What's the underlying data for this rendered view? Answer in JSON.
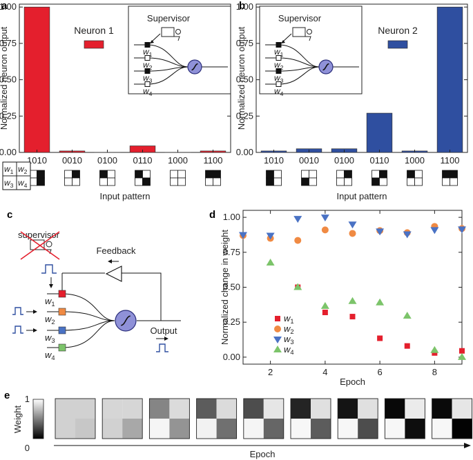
{
  "colors": {
    "red": "#e41f2d",
    "blue": "#2f4fa0",
    "orange": "#f08a43",
    "green": "#7cc46a",
    "tri_blue": "#4a72c4",
    "neuron": "#8f91d8",
    "axis": "#222222"
  },
  "panels": {
    "a": {
      "label": "a"
    },
    "b": {
      "label": "b"
    },
    "c": {
      "label": "c"
    },
    "d": {
      "label": "d"
    },
    "e": {
      "label": "e"
    }
  },
  "inset": {
    "supervisor": "Supervisor",
    "w_letter": "w",
    "w_subs": [
      "1",
      "2",
      "3",
      "4"
    ]
  },
  "key_grid": {
    "w": "w",
    "subs": [
      "1",
      "2",
      "3",
      "4"
    ]
  },
  "panel_c": {
    "supervisor": "supervisor",
    "feedback": "Feedback",
    "output": "Output",
    "w_letter": "w",
    "w_subs": [
      "1",
      "2",
      "3",
      "4"
    ]
  },
  "chart_data": [
    {
      "id": "a",
      "type": "bar",
      "annotation": "Neuron 1",
      "ylabel": "Normalized neuron output",
      "xlabel": "Input pattern",
      "categories": [
        "1010",
        "0010",
        "0100",
        "0110",
        "1000",
        "1100"
      ],
      "values": [
        1.0,
        0.01,
        0.0,
        0.045,
        0.0,
        0.01
      ],
      "ylim": [
        0,
        1.02
      ],
      "yticks": [
        "0.00",
        "0.25",
        "0.50",
        "0.75",
        "1.00"
      ],
      "color": "#e41f2d",
      "pattern_icons": [
        [
          0,
          1,
          0,
          1
        ],
        [
          0,
          1,
          0,
          0
        ],
        [
          1,
          0,
          0,
          0
        ],
        [
          1,
          0,
          0,
          1
        ],
        [
          0,
          0,
          0,
          0
        ],
        [
          1,
          1,
          0,
          0
        ]
      ]
    },
    {
      "id": "b",
      "type": "bar",
      "annotation": "Neuron 2",
      "ylabel": "Normalized neuron output",
      "xlabel": "Input pattern",
      "categories": [
        "1010",
        "0010",
        "0100",
        "0110",
        "1000",
        "1100"
      ],
      "values": [
        0.01,
        0.025,
        0.025,
        0.27,
        0.01,
        1.0
      ],
      "ylim": [
        0,
        1.02
      ],
      "yticks": [
        "0.00",
        "0.25",
        "0.50",
        "0.75",
        "1.00"
      ],
      "color": "#2f4fa0",
      "pattern_icons": [
        [
          1,
          0,
          1,
          0
        ],
        [
          0,
          0,
          1,
          0
        ],
        [
          0,
          1,
          0,
          0
        ],
        [
          0,
          1,
          1,
          0
        ],
        [
          1,
          0,
          0,
          0
        ],
        [
          1,
          1,
          0,
          0
        ]
      ]
    },
    {
      "id": "d",
      "type": "scatter",
      "ylabel": "Normalized change in weight",
      "xlabel": "Epoch",
      "xlim": [
        1,
        9
      ],
      "ylim": [
        -0.05,
        1.05
      ],
      "xticks": [
        2,
        4,
        6,
        8
      ],
      "yticks": [
        "0.00",
        "0.25",
        "0.50",
        "0.75",
        "1.00"
      ],
      "legend_position": "bottom-left",
      "series": [
        {
          "name": "w1",
          "sub": "1",
          "marker": "square",
          "color": "#e41f2d",
          "x": [
            3,
            4,
            5,
            6,
            7,
            8,
            9
          ],
          "y": [
            0.5,
            0.32,
            0.29,
            0.135,
            0.08,
            0.03,
            0.045
          ]
        },
        {
          "name": "w2",
          "sub": "2",
          "marker": "circle",
          "color": "#f08a43",
          "x": [
            1,
            2,
            3,
            4,
            5,
            6,
            7,
            8,
            9
          ],
          "y": [
            0.87,
            0.85,
            0.835,
            0.91,
            0.885,
            0.905,
            0.89,
            0.935,
            0.92
          ]
        },
        {
          "name": "w3",
          "sub": "3",
          "marker": "triangle-down",
          "color": "#4a72c4",
          "x": [
            1,
            2,
            3,
            4,
            5,
            6,
            7,
            8,
            9
          ],
          "y": [
            0.875,
            0.87,
            0.99,
            1.0,
            0.95,
            0.9,
            0.88,
            0.91,
            0.915
          ]
        },
        {
          "name": "w4",
          "sub": "4",
          "marker": "triangle-up",
          "color": "#7cc46a",
          "x": [
            2,
            3,
            4,
            5,
            6,
            7,
            8,
            9
          ],
          "y": [
            0.675,
            0.5,
            0.365,
            0.4,
            0.39,
            0.295,
            0.05,
            0.0
          ]
        }
      ]
    },
    {
      "id": "e",
      "type": "heatmap",
      "ylabel": "Weight",
      "xlabel": "Epoch",
      "colorbar": {
        "min": "0",
        "max": "1"
      },
      "note": "Each tile shows 2x2 weights [w1, w2 / w3, w4]; values are normalized weight (1 = white, 0 = black).",
      "tiles": [
        [
          0.82,
          0.82,
          0.82,
          0.78
        ],
        [
          0.84,
          0.84,
          0.82,
          0.66
        ],
        [
          0.52,
          0.86,
          0.96,
          0.58
        ],
        [
          0.36,
          0.86,
          0.95,
          0.44
        ],
        [
          0.3,
          0.9,
          0.96,
          0.4
        ],
        [
          0.14,
          0.88,
          0.97,
          0.36
        ],
        [
          0.08,
          0.88,
          0.97,
          0.3
        ],
        [
          0.03,
          0.92,
          0.97,
          0.05
        ],
        [
          0.04,
          0.9,
          0.97,
          0.01
        ]
      ]
    }
  ]
}
